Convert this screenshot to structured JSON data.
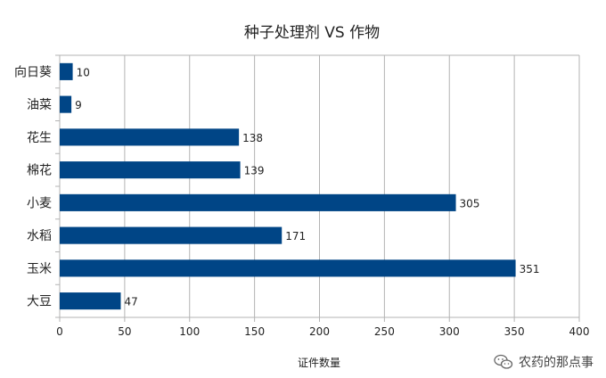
{
  "chart_data": {
    "type": "bar",
    "orientation": "horizontal",
    "title": "种子处理剂 VS 作物",
    "xlabel": "证件数量",
    "ylabel": "",
    "categories": [
      "向日葵",
      "油菜",
      "花生",
      "棉花",
      "小麦",
      "水稻",
      "玉米",
      "大豆"
    ],
    "values": [
      10,
      9,
      138,
      139,
      305,
      171,
      351,
      47
    ],
    "xlim": [
      0,
      400
    ],
    "xticks": [
      0,
      50,
      100,
      150,
      200,
      250,
      300,
      350,
      400
    ],
    "grid": true,
    "legend": "none",
    "bar_color": "#004586",
    "grid_color": "#b3b3b3"
  },
  "watermark": {
    "text": "农药的那点事",
    "icon": "wechat-icon"
  }
}
